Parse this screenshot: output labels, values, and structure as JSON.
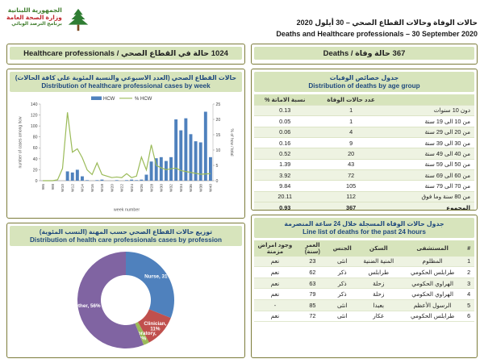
{
  "header": {
    "logo_lines": [
      "الجمهورية اللبنانية",
      "وزارة الصحة العامة",
      "برنامج الترصد الوبائي"
    ],
    "title_ar": "حالات الوفاة وحالات القطاع الصحي – 30 أيلول 2020",
    "title_en": "Deaths and Healthcare professionals – 30 September 2020"
  },
  "left": {
    "header_label": "1024 حالة في القطاع الصحي / Healthcare professionals"
  },
  "right": {
    "header_label": "367 حالة وفاة / Deaths",
    "age_table": {
      "title_ar": "جدول خصائص الوفيات",
      "title_en": "Distribution of deaths by age group",
      "columns": {
        "age": "",
        "deaths": "عدد حالات الوفاة",
        "cfr": "نسبة الاماتة %"
      },
      "rows": [
        [
          "دون 10 سنوات",
          "1",
          "0.13"
        ],
        [
          "من 10 الى 19 سنة",
          "1",
          "0.05"
        ],
        [
          "من 20 الى 29 سنة",
          "4",
          "0.06"
        ],
        [
          "من 30 الى 39 سنة",
          "9",
          "0.16"
        ],
        [
          "من 40 الى 49 سنة",
          "20",
          "0.52"
        ],
        [
          "من 50 الى 59 سنة",
          "43",
          "1.39"
        ],
        [
          "من 60 الى 69 سنة",
          "72",
          "3.92"
        ],
        [
          "من 70 الى 79 سنة",
          "105",
          "9.84"
        ],
        [
          "من 80 سنة وما فوق",
          "112",
          "20.11"
        ]
      ],
      "total": [
        "المجموع",
        "367",
        "0.93"
      ]
    },
    "line_list": {
      "title_ar": "جدول حالات الوفاة المسجلة خلال 24 ساعة المنصرمة",
      "title_en": "Line list of deaths for the past 24 hours",
      "columns": [
        "#",
        "المستشفى",
        "السكن",
        "الجنس",
        "العمر (سنة)",
        "وجود امراض مزمنة"
      ],
      "rows": [
        [
          "1",
          "المظلوم",
          "المنية الضنية",
          "انثى",
          "23",
          "نعم"
        ],
        [
          "2",
          "طرابلس الحكومي",
          "طرابلس",
          "ذكر",
          "62",
          "نعم"
        ],
        [
          "3",
          "الهراوي الحكومي",
          "زحلة",
          "ذكر",
          "63",
          "نعم"
        ],
        [
          "4",
          "الهراوي الحكومي",
          "زحلة",
          "ذكر",
          "79",
          "نعم"
        ],
        [
          "5",
          "الرسول الأعظم",
          "بعبدا",
          "انثى",
          "85",
          "-"
        ],
        [
          "6",
          "طرابلس الحكومي",
          "عكار",
          "انثى",
          "72",
          "نعم"
        ]
      ]
    }
  },
  "chart_data": [
    {
      "type": "bar",
      "title_ar": "حالات القطاع الصحي (العدد الاسبوعي والنسبة المئوية على كافة الحالات)",
      "title_en": "Distribution of healthcare professional cases by week",
      "categories": [
        "W6",
        "W7",
        "W8",
        "W9",
        "W10",
        "W11",
        "W12",
        "W13",
        "W14",
        "W15",
        "W16",
        "W17",
        "W18",
        "W19",
        "W20",
        "W21",
        "W22",
        "W23",
        "W24",
        "W25",
        "W26",
        "W27",
        "W28",
        "W29",
        "W30",
        "W31",
        "W32",
        "W33",
        "W34",
        "W35",
        "W36",
        "W37",
        "W38",
        "W39",
        "W40"
      ],
      "series": [
        {
          "name": "HCW",
          "type": "bar",
          "axis": "left",
          "color": "#4f81bd",
          "values": [
            0,
            0,
            0,
            0,
            0,
            17,
            15,
            20,
            8,
            1,
            0,
            1,
            2,
            0,
            0,
            1,
            0,
            1,
            2,
            1,
            2,
            11,
            35,
            41,
            43,
            36,
            43,
            112,
            92,
            114,
            85,
            72,
            70,
            126,
            43
          ]
        },
        {
          "name": "% HCW",
          "type": "line",
          "axis": "right",
          "color": "#9bbb59",
          "values": [
            0,
            0,
            0,
            0.3,
            4,
            22.3,
            9.3,
            10.4,
            7.5,
            3.5,
            2,
            5.8,
            2,
            1.5,
            1,
            1.2,
            1,
            2.3,
            1,
            1.5,
            7.7,
            3.5,
            11.7,
            5,
            4.2,
            3.6,
            3.9,
            4.1,
            3.3,
            3,
            2.7,
            2.4,
            2.1,
            2.2,
            2.3
          ]
        }
      ],
      "xlabel": "week number",
      "ylabel_left": "number of cases among hcw",
      "ylabel_right": "% of hcw / total",
      "ylim_left": [
        0,
        140
      ],
      "ylim_right": [
        0,
        25
      ],
      "ytick_step_left": 20,
      "ytick_step_right": 5,
      "xtick_step": 2,
      "legend_position": "top",
      "grid": false
    },
    {
      "type": "pie",
      "donut": true,
      "title_ar": "توزيع حالات القطاع الصحي حسب المهنة (النسب المئوية)",
      "title_en": "Distribution of health care professionals cases by profession",
      "slices": [
        {
          "label": "Nurse",
          "pct": 31,
          "color": "#4f81bd"
        },
        {
          "label": "Clinician",
          "pct": 11,
          "color": "#c0504d"
        },
        {
          "label": "Laboratory",
          "pct": 2,
          "color": "#9bbb59"
        },
        {
          "label": "Other",
          "pct": 56,
          "color": "#8064a2"
        }
      ]
    }
  ]
}
